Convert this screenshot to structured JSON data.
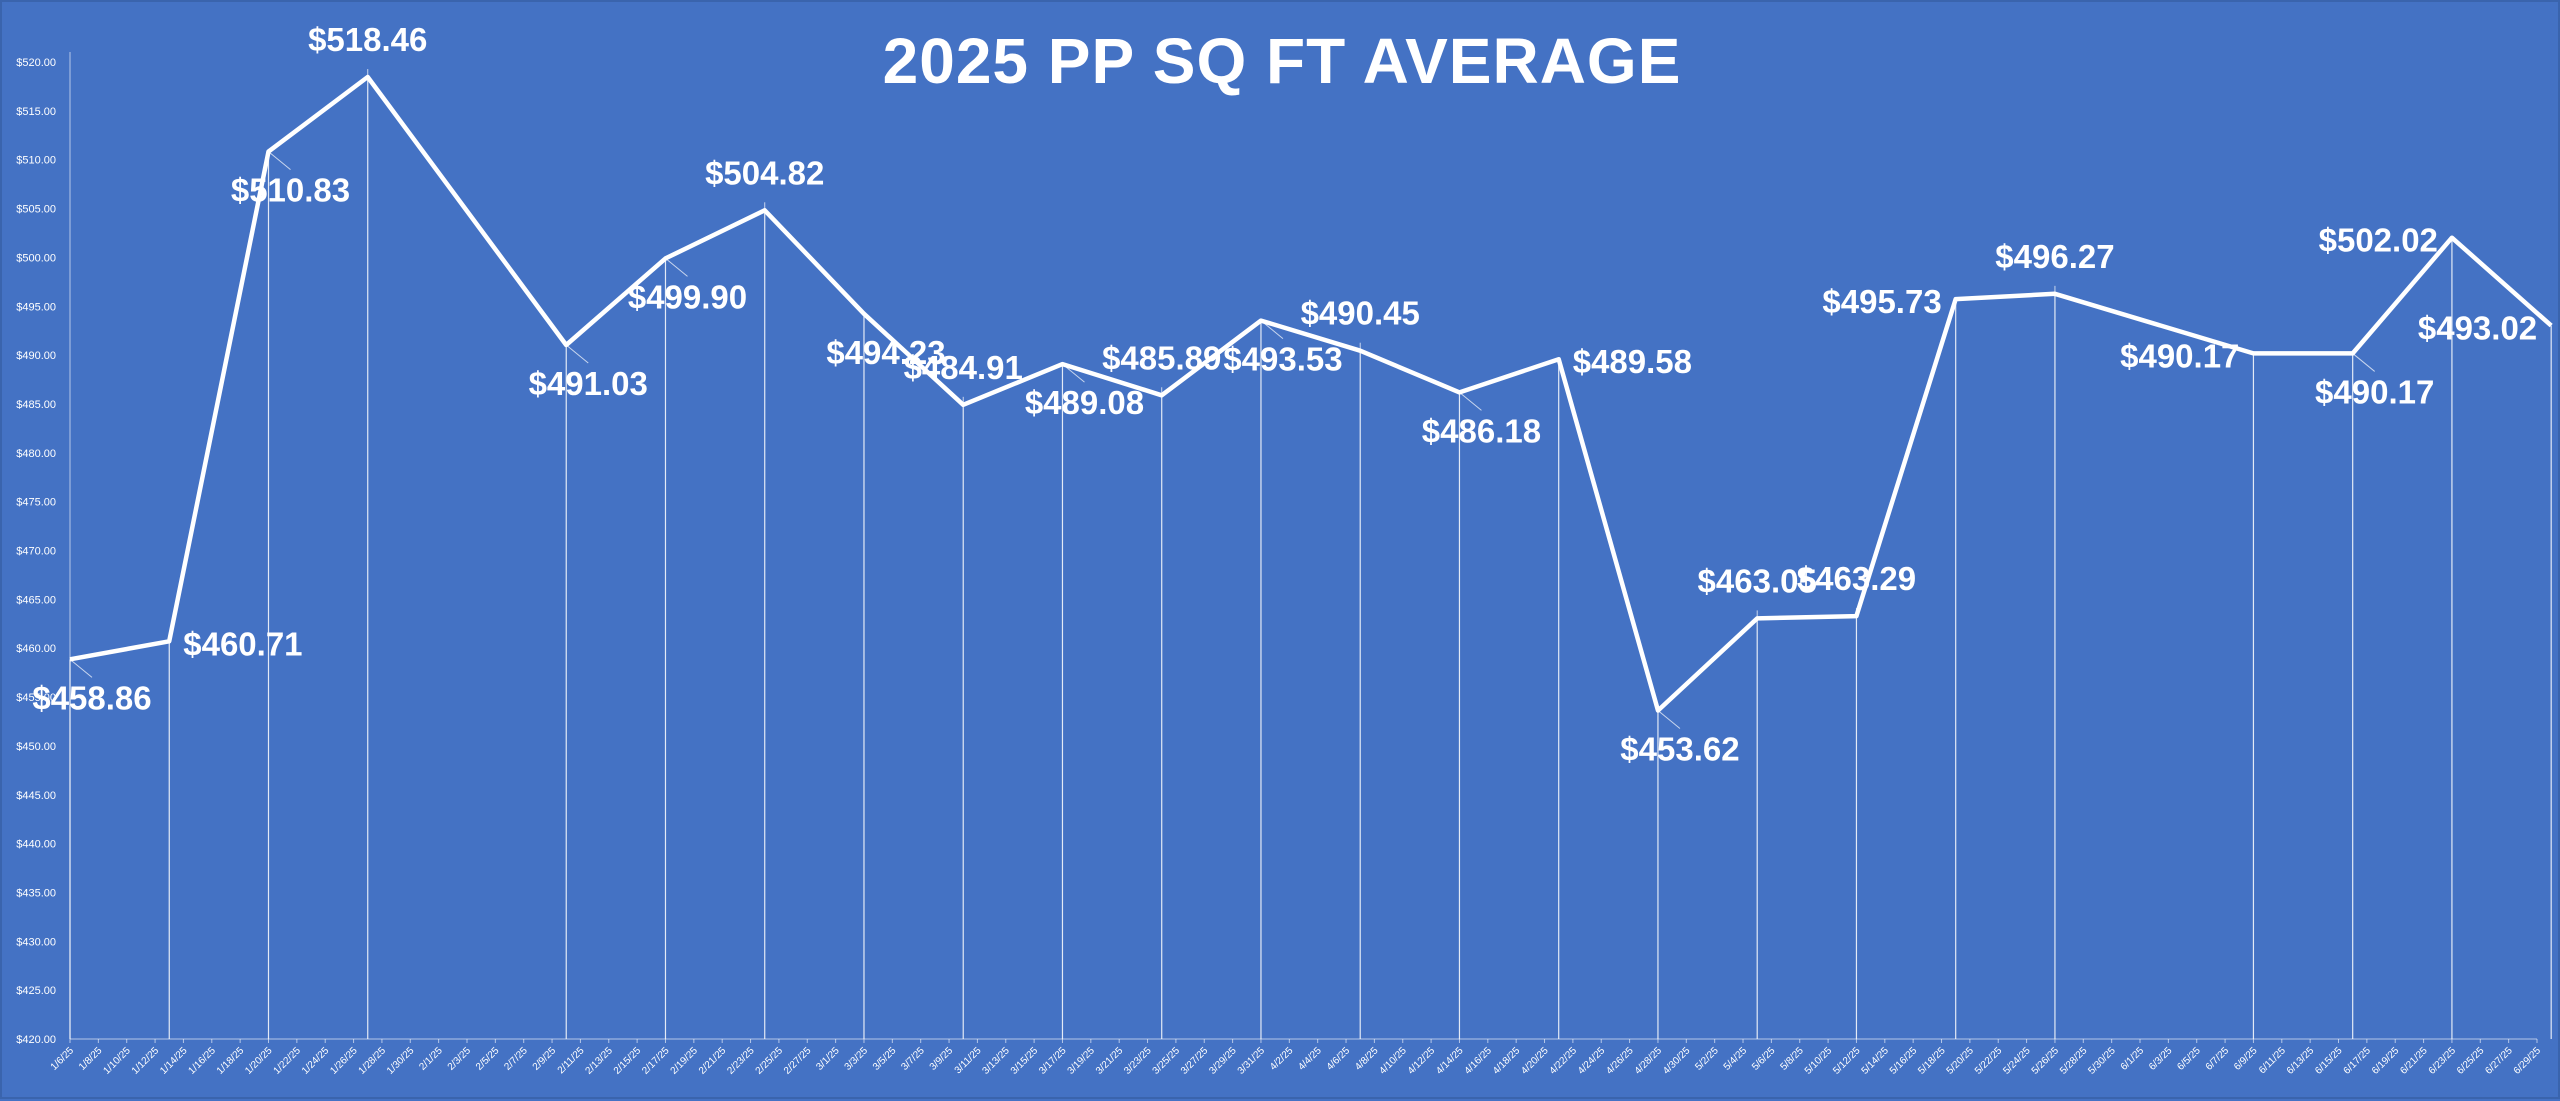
{
  "chart_data": {
    "type": "line",
    "title": "2025 PP SQ FT AVERAGE",
    "xlabel": "",
    "ylabel": "",
    "ylim": [
      420,
      520
    ],
    "ytick_step": 5,
    "grid": false,
    "legend": "none",
    "colors": {
      "background": "#4472c4",
      "line": "#ffffff",
      "drop_lines": "#ffffff"
    },
    "x_ticks": [
      "1/6/25",
      "1/8/25",
      "1/10/25",
      "1/12/25",
      "1/14/25",
      "1/16/25",
      "1/18/25",
      "1/20/25",
      "1/22/25",
      "1/24/25",
      "1/26/25",
      "1/28/25",
      "1/30/25",
      "2/1/25",
      "2/3/25",
      "2/5/25",
      "2/7/25",
      "2/9/25",
      "2/11/25",
      "2/13/25",
      "2/15/25",
      "2/17/25",
      "2/19/25",
      "2/21/25",
      "2/23/25",
      "2/25/25",
      "2/27/25",
      "3/1/25",
      "3/3/25",
      "3/5/25",
      "3/7/25",
      "3/9/25",
      "3/11/25",
      "3/13/25",
      "3/15/25",
      "3/17/25",
      "3/19/25",
      "3/21/25",
      "3/23/25",
      "3/25/25",
      "3/27/25",
      "3/29/25",
      "3/31/25",
      "4/2/25",
      "4/4/25",
      "4/6/25",
      "4/8/25",
      "4/10/25",
      "4/12/25",
      "4/14/25",
      "4/16/25",
      "4/18/25",
      "4/20/25",
      "4/22/25",
      "4/24/25",
      "4/26/25",
      "4/28/25",
      "4/30/25",
      "5/2/25",
      "5/4/25",
      "5/6/25",
      "5/8/25",
      "5/10/25",
      "5/12/25",
      "5/14/25",
      "5/16/25",
      "5/18/25",
      "5/20/25",
      "5/22/25",
      "5/24/25",
      "5/26/25",
      "5/28/25",
      "5/30/25",
      "6/1/25",
      "6/3/25",
      "6/5/25",
      "6/7/25",
      "6/9/25",
      "6/11/25",
      "6/13/25",
      "6/15/25",
      "6/17/25",
      "6/19/25",
      "6/21/25",
      "6/23/25",
      "6/25/25",
      "6/27/25",
      "6/29/25"
    ],
    "series": [
      {
        "x": [
          "1/6/25",
          "1/13/25",
          "1/20/25",
          "1/27/25",
          "2/10/25",
          "2/17/25",
          "2/24/25",
          "3/3/25",
          "3/10/25",
          "3/17/25",
          "3/24/25",
          "3/31/25",
          "4/7/25",
          "4/14/25",
          "4/21/25",
          "4/28/25",
          "5/5/25",
          "5/12/25",
          "5/19/25",
          "5/26/25",
          "6/9/25",
          "6/16/25",
          "6/23/25",
          "6/30/25"
        ],
        "values": [
          458.86,
          460.71,
          510.83,
          518.46,
          491.03,
          499.9,
          504.82,
          494.23,
          484.91,
          489.08,
          485.89,
          493.53,
          490.45,
          486.18,
          489.58,
          453.62,
          463.05,
          463.29,
          495.73,
          496.27,
          490.17,
          490.17,
          502.02,
          493.02
        ],
        "labels": [
          "$458.86",
          "$460.71",
          "$510.83",
          "$518.46",
          "$491.03",
          "$499.90",
          "$504.82",
          "$494.23",
          "$484.91",
          "$489.08",
          "$485.89",
          "$493.53",
          "$490.45",
          "$486.18",
          "$489.58",
          "$453.62",
          "$463.05",
          "$463.29",
          "$495.73",
          "$496.27",
          "$490.17",
          "$490.17",
          "$502.02",
          "$493.02"
        ],
        "label_position": [
          "below",
          "right",
          "below",
          "above",
          "below",
          "below",
          "above",
          "below",
          "above",
          "below",
          "above",
          "below",
          "above",
          "below",
          "right",
          "below",
          "above",
          "above",
          "left",
          "above",
          "left",
          "below",
          "left",
          "left"
        ]
      }
    ]
  }
}
